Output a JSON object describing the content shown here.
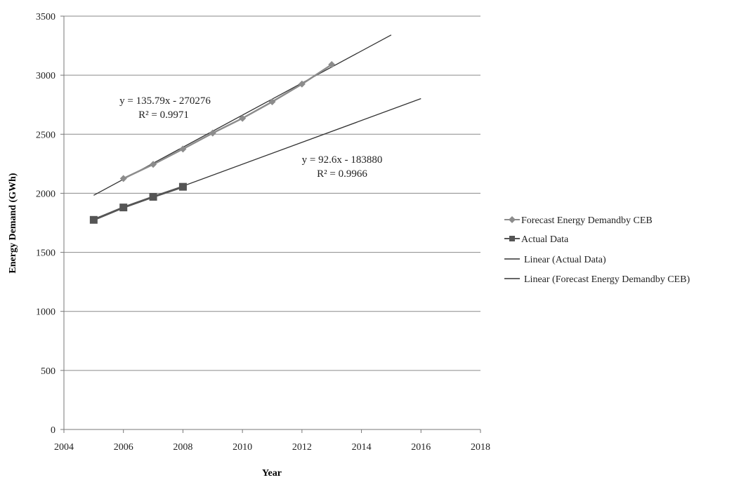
{
  "chart_data": {
    "type": "line",
    "title": "",
    "xlabel": "Year",
    "ylabel": "Energy Demand (GWh)",
    "xlim": [
      2004,
      2018
    ],
    "ylim": [
      0,
      3500
    ],
    "x_ticks": [
      2004,
      2006,
      2008,
      2010,
      2012,
      2014,
      2016,
      2018
    ],
    "y_ticks": [
      0,
      500,
      1000,
      1500,
      2000,
      2500,
      3000,
      3500
    ],
    "grid": "horizontal",
    "legend_position": "right",
    "series": [
      {
        "name": "Forecast Energy Demandby CEB",
        "marker": "diamond",
        "color": "#8c8c8c",
        "x": [
          2006,
          2007,
          2008,
          2009,
          2010,
          2011,
          2012,
          2013
        ],
        "y": [
          2125,
          2245,
          2375,
          2510,
          2635,
          2775,
          2925,
          3090
        ]
      },
      {
        "name": "Actual Data",
        "marker": "square",
        "color": "#555555",
        "x": [
          2005,
          2006,
          2007,
          2008
        ],
        "y": [
          1775,
          1880,
          1970,
          2055
        ]
      }
    ],
    "trendlines": [
      {
        "name": "Linear (Actual Data)",
        "color": "#333333",
        "slope": 92.6,
        "intercept": -183880,
        "x_range": [
          2005,
          2016
        ],
        "equation": "y = 92.6x - 183880",
        "r2": "R² = 0.9966"
      },
      {
        "name": "Linear (Forecast Energy Demandby CEB)",
        "color": "#333333",
        "slope": 135.79,
        "intercept": -270276,
        "x_range": [
          2005,
          2015
        ],
        "equation": "y = 135.79x - 270276",
        "r2": "R² = 0.9971"
      }
    ]
  }
}
